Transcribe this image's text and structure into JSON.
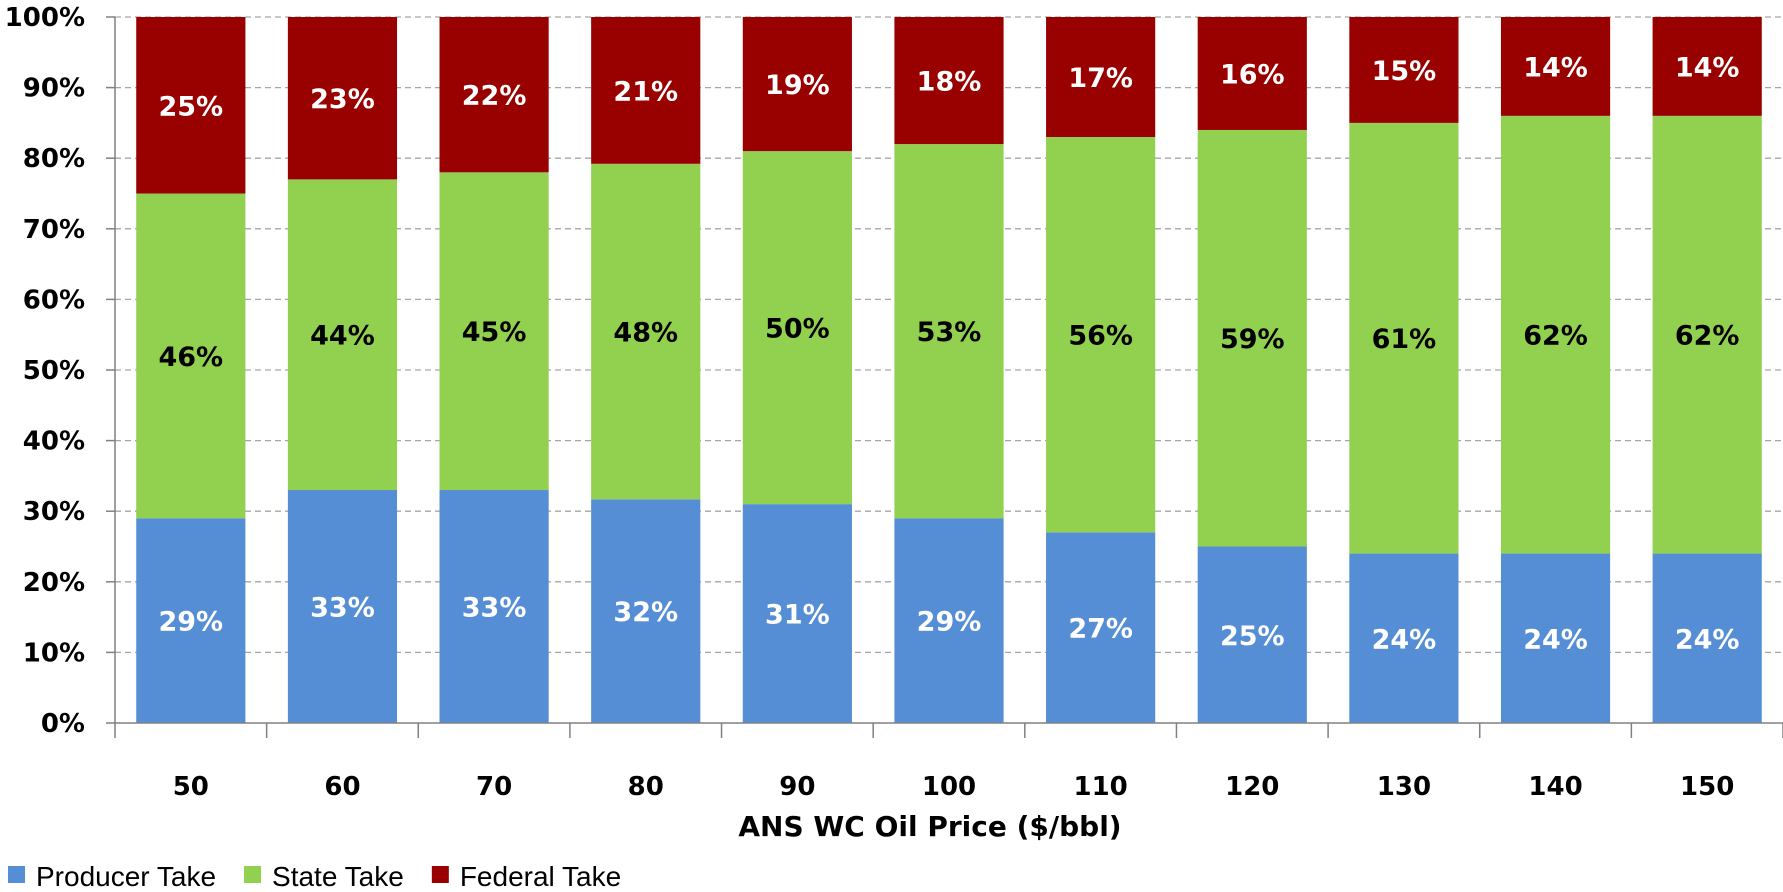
{
  "chart_data": {
    "type": "bar",
    "stacked": true,
    "title": "",
    "xlabel": "ANS WC Oil Price ($/bbl)",
    "ylabel": "",
    "ylim": [
      0,
      100
    ],
    "y_ticks": [
      "0%",
      "10%",
      "20%",
      "30%",
      "40%",
      "50%",
      "60%",
      "70%",
      "80%",
      "90%",
      "100%"
    ],
    "grid": true,
    "legend_position": "bottom-left",
    "categories": [
      "50",
      "60",
      "70",
      "80",
      "90",
      "100",
      "110",
      "120",
      "130",
      "140",
      "150"
    ],
    "series": [
      {
        "name": "Producer Take",
        "color": "#558ED5",
        "label_color": "#ffffff",
        "values": [
          29,
          33,
          33,
          32,
          31,
          29,
          27,
          25,
          24,
          24,
          24
        ],
        "labels": [
          "29%",
          "33%",
          "33%",
          "32%",
          "31%",
          "29%",
          "27%",
          "25%",
          "24%",
          "24%",
          "24%"
        ]
      },
      {
        "name": "State Take",
        "color": "#92D050",
        "label_color": "#000000",
        "values": [
          46,
          44,
          45,
          48,
          50,
          53,
          56,
          59,
          61,
          62,
          62
        ],
        "labels": [
          "46%",
          "44%",
          "45%",
          "48%",
          "50%",
          "53%",
          "56%",
          "59%",
          "61%",
          "62%",
          "62%"
        ]
      },
      {
        "name": "Federal Take",
        "color": "#990000",
        "label_color": "#ffffff",
        "values": [
          25,
          23,
          22,
          21,
          19,
          18,
          17,
          16,
          15,
          14,
          14
        ],
        "labels": [
          "25%",
          "23%",
          "22%",
          "21%",
          "19%",
          "18%",
          "17%",
          "16%",
          "15%",
          "14%",
          "14%"
        ]
      }
    ]
  }
}
